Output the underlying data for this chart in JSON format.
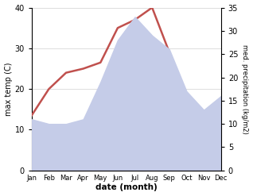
{
  "months": [
    "Jan",
    "Feb",
    "Mar",
    "Apr",
    "May",
    "Jun",
    "Jul",
    "Aug",
    "Sep",
    "Oct",
    "Nov",
    "Dec"
  ],
  "max_temp": [
    13.5,
    20.0,
    24.0,
    25.0,
    26.5,
    35.0,
    37.0,
    40.0,
    29.0,
    17.0,
    14.0,
    16.0
  ],
  "precipitation": [
    11.0,
    10.0,
    10.0,
    11.0,
    19.0,
    28.0,
    33.0,
    29.0,
    26.0,
    17.0,
    13.0,
    16.0
  ],
  "temp_color": "#c0504d",
  "precip_color": "#c5cce8",
  "temp_ylim": [
    0,
    40
  ],
  "precip_ylim": [
    0,
    35
  ],
  "temp_yticks": [
    0,
    10,
    20,
    30,
    40
  ],
  "precip_yticks": [
    0,
    5,
    10,
    15,
    20,
    25,
    30,
    35
  ],
  "xlabel": "date (month)",
  "ylabel_left": "max temp (C)",
  "ylabel_right": "med. precipitation (kg/m2)",
  "background_color": "#ffffff",
  "grid_color": "#d0d0d0",
  "title": ""
}
